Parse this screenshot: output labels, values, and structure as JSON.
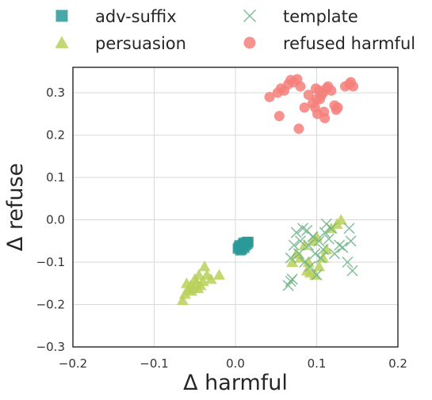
{
  "chart_data": {
    "type": "scatter",
    "xlabel": "Δ harmful",
    "ylabel": "Δ refuse",
    "xlim": [
      -0.2,
      0.2
    ],
    "ylim": [
      -0.3,
      0.36
    ],
    "xticks": [
      -0.2,
      -0.1,
      0.0,
      0.1,
      0.2
    ],
    "yticks": [
      -0.3,
      -0.2,
      -0.1,
      0.0,
      0.1,
      0.2,
      0.3
    ],
    "xtick_labels": [
      "−0.2",
      "−0.1",
      "0.0",
      "0.1",
      "0.2"
    ],
    "ytick_labels": [
      "−0.3",
      "−0.2",
      "−0.1",
      "0.0",
      "0.1",
      "0.2",
      "0.3"
    ],
    "grid": true,
    "legend_position": "top, outside plot, two columns",
    "series": [
      {
        "name": "adv-suffix",
        "marker": "square",
        "color": "#2a9a98",
        "points": [
          [
            0.003,
            -0.068
          ],
          [
            0.005,
            -0.06
          ],
          [
            0.007,
            -0.064
          ],
          [
            0.009,
            -0.058
          ],
          [
            0.01,
            -0.062
          ],
          [
            0.012,
            -0.055
          ],
          [
            0.014,
            -0.052
          ],
          [
            0.016,
            -0.052
          ],
          [
            0.011,
            -0.066
          ],
          [
            0.008,
            -0.07
          ],
          [
            0.006,
            -0.072
          ],
          [
            0.013,
            -0.06
          ],
          [
            0.015,
            -0.056
          ],
          [
            0.004,
            -0.064
          ],
          [
            0.01,
            -0.054
          ]
        ]
      },
      {
        "name": "persuasion",
        "marker": "triangle",
        "color": "#b8d05a",
        "points": [
          [
            -0.065,
            -0.19
          ],
          [
            -0.062,
            -0.175
          ],
          [
            -0.06,
            -0.15
          ],
          [
            -0.058,
            -0.165
          ],
          [
            -0.055,
            -0.155
          ],
          [
            -0.052,
            -0.16
          ],
          [
            -0.05,
            -0.14
          ],
          [
            -0.048,
            -0.15
          ],
          [
            -0.045,
            -0.13
          ],
          [
            -0.043,
            -0.155
          ],
          [
            -0.04,
            -0.145
          ],
          [
            -0.038,
            -0.11
          ],
          [
            -0.035,
            -0.13
          ],
          [
            -0.03,
            -0.14
          ],
          [
            -0.02,
            -0.13
          ],
          [
            -0.054,
            -0.168
          ],
          [
            -0.046,
            -0.162
          ],
          [
            0.07,
            -0.1
          ],
          [
            0.075,
            -0.08
          ],
          [
            0.08,
            -0.09
          ],
          [
            0.085,
            -0.06
          ],
          [
            0.088,
            -0.12
          ],
          [
            0.09,
            -0.1
          ],
          [
            0.095,
            -0.05
          ],
          [
            0.098,
            -0.13
          ],
          [
            0.1,
            -0.04
          ],
          [
            0.103,
            -0.11
          ],
          [
            0.108,
            -0.09
          ],
          [
            0.112,
            -0.07
          ],
          [
            0.118,
            -0.02
          ],
          [
            0.125,
            -0.01
          ],
          [
            0.13,
            0.0
          ],
          [
            0.092,
            -0.125
          ]
        ]
      },
      {
        "name": "template",
        "marker": "x",
        "color": "#6db387",
        "points": [
          [
            0.065,
            -0.155
          ],
          [
            0.068,
            -0.09
          ],
          [
            0.07,
            -0.14
          ],
          [
            0.072,
            -0.06
          ],
          [
            0.075,
            -0.03
          ],
          [
            0.078,
            -0.08
          ],
          [
            0.08,
            -0.05
          ],
          [
            0.083,
            -0.02
          ],
          [
            0.085,
            -0.1
          ],
          [
            0.088,
            -0.025
          ],
          [
            0.09,
            -0.06
          ],
          [
            0.092,
            -0.11
          ],
          [
            0.095,
            -0.04
          ],
          [
            0.098,
            -0.08
          ],
          [
            0.1,
            -0.13
          ],
          [
            0.103,
            -0.05
          ],
          [
            0.105,
            -0.09
          ],
          [
            0.108,
            -0.07
          ],
          [
            0.11,
            -0.03
          ],
          [
            0.112,
            -0.01
          ],
          [
            0.115,
            -0.045
          ],
          [
            0.118,
            -0.02
          ],
          [
            0.122,
            -0.08
          ],
          [
            0.128,
            -0.06
          ],
          [
            0.132,
            -0.065
          ],
          [
            0.138,
            -0.1
          ],
          [
            0.14,
            -0.02
          ],
          [
            0.142,
            -0.05
          ],
          [
            0.144,
            -0.12
          ],
          [
            0.068,
            -0.145
          ]
        ]
      },
      {
        "name": "refused harmful",
        "marker": "circle",
        "color": "#f4807b",
        "points": [
          [
            0.042,
            0.29
          ],
          [
            0.052,
            0.3
          ],
          [
            0.054,
            0.245
          ],
          [
            0.056,
            0.31
          ],
          [
            0.06,
            0.305
          ],
          [
            0.065,
            0.32
          ],
          [
            0.068,
            0.33
          ],
          [
            0.072,
            0.325
          ],
          [
            0.076,
            0.332
          ],
          [
            0.078,
            0.215
          ],
          [
            0.08,
            0.315
          ],
          [
            0.085,
            0.265
          ],
          [
            0.09,
            0.295
          ],
          [
            0.095,
            0.275
          ],
          [
            0.098,
            0.265
          ],
          [
            0.1,
            0.285
          ],
          [
            0.101,
            0.25
          ],
          [
            0.103,
            0.305
          ],
          [
            0.104,
            0.285
          ],
          [
            0.106,
            0.295
          ],
          [
            0.108,
            0.3
          ],
          [
            0.11,
            0.24
          ],
          [
            0.112,
            0.31
          ],
          [
            0.114,
            0.315
          ],
          [
            0.118,
            0.305
          ],
          [
            0.122,
            0.27
          ],
          [
            0.124,
            0.26
          ],
          [
            0.126,
            0.265
          ],
          [
            0.135,
            0.315
          ],
          [
            0.14,
            0.32
          ],
          [
            0.142,
            0.325
          ],
          [
            0.145,
            0.315
          ],
          [
            0.099,
            0.31
          ],
          [
            0.109,
            0.255
          ]
        ]
      }
    ]
  }
}
